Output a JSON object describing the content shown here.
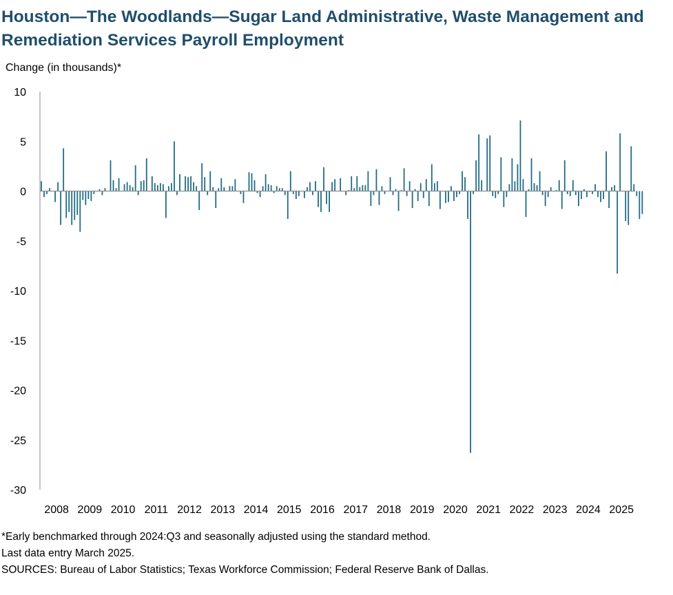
{
  "title": "Houston—The Woodlands—Sugar Land Administrative, Waste Management and Remediation Services Payroll Employment",
  "chart_data": {
    "type": "bar",
    "title": "Houston—The Woodlands—Sugar Land Administrative, Waste Management and Remediation Services Payroll Employment",
    "ylabel": "Change (in thousands)*",
    "xlabel": "",
    "ylim": [
      -30,
      10
    ],
    "yticks": [
      10,
      5,
      0,
      -5,
      -10,
      -15,
      -20,
      -25,
      -30
    ],
    "x_tick_labels": [
      "2008",
      "2009",
      "2010",
      "2011",
      "2012",
      "2013",
      "2014",
      "2015",
      "2016",
      "2017",
      "2018",
      "2019",
      "2020",
      "2021",
      "2022",
      "2023",
      "2024",
      "2025"
    ],
    "start": "2008-01",
    "end": "2025-03",
    "frequency": "monthly",
    "bar_color": "#1f6b85",
    "values": [
      1.0,
      -0.6,
      -0.3,
      0.3,
      0.0,
      -1.1,
      0.9,
      -3.4,
      4.3,
      -2.7,
      -2.1,
      -3.4,
      -2.9,
      -2.4,
      -4.1,
      -0.9,
      -1.4,
      -0.8,
      -1.0,
      -0.3,
      0.0,
      0.2,
      -0.4,
      0.3,
      0.0,
      3.1,
      1.1,
      0.3,
      1.3,
      0.0,
      0.7,
      0.9,
      0.6,
      0.4,
      2.6,
      -0.4,
      1.0,
      1.1,
      3.3,
      0.0,
      1.5,
      0.8,
      0.6,
      0.8,
      0.7,
      -2.7,
      0.5,
      0.8,
      5.0,
      -0.4,
      1.7,
      0.0,
      1.5,
      1.4,
      1.5,
      0.9,
      0.5,
      -1.9,
      2.8,
      1.4,
      -0.4,
      2.0,
      0.4,
      -1.7,
      0.3,
      1.3,
      0.4,
      0.0,
      0.5,
      0.5,
      1.2,
      0.0,
      -0.3,
      -1.2,
      0.0,
      1.9,
      1.8,
      1.1,
      -0.2,
      -0.6,
      0.5,
      1.7,
      0.7,
      0.6,
      -0.2,
      0.5,
      0.3,
      0.3,
      -0.4,
      -2.8,
      2.0,
      -0.3,
      -0.8,
      -0.5,
      0.0,
      -0.7,
      0.4,
      0.9,
      -0.4,
      1.0,
      -1.6,
      -2.1,
      2.4,
      -1.3,
      -2.1,
      0.9,
      1.2,
      0.0,
      1.3,
      0.0,
      -0.4,
      0.1,
      1.5,
      0.3,
      1.5,
      0.4,
      0.6,
      0.6,
      2.0,
      -1.5,
      -0.4,
      2.2,
      -1.4,
      0.5,
      -0.3,
      0.0,
      1.4,
      -0.4,
      0.2,
      -2.0,
      0.1,
      2.3,
      -0.5,
      1.0,
      -1.7,
      0.2,
      -1.0,
      0.8,
      -0.7,
      1.2,
      -1.5,
      2.7,
      0.8,
      1.0,
      -1.8,
      0.0,
      -1.2,
      -1.1,
      0.5,
      -1.0,
      -0.6,
      -0.3,
      2.0,
      1.4,
      -2.8,
      -26.3,
      -0.3,
      3.1,
      5.7,
      1.1,
      0.0,
      5.3,
      5.6,
      -0.5,
      -0.7,
      -0.3,
      3.4,
      -1.6,
      -0.6,
      0.7,
      3.3,
      1.0,
      2.7,
      7.1,
      1.2,
      -2.6,
      0.2,
      3.3,
      0.8,
      0.6,
      2.0,
      -0.4,
      -1.5,
      -0.6,
      0.4,
      0.0,
      0.1,
      1.1,
      -1.8,
      3.1,
      -0.3,
      -0.5,
      1.1,
      -0.4,
      -1.5,
      -0.8,
      0.2,
      -0.6,
      -0.1,
      -0.3,
      0.7,
      -0.6,
      -1.1,
      -0.8,
      4.0,
      -1.7,
      0.4,
      0.6,
      -8.3,
      5.8,
      0.0,
      -3.0,
      -3.4,
      4.5,
      0.7,
      -0.5,
      -2.8,
      -2.3,
      0.0
    ]
  },
  "footnotes": {
    "note1": "*Early benchmarked through 2024:Q3 and seasonally adjusted using the standard method.",
    "note2": "Last data entry March 2025.",
    "note3": "SOURCES: Bureau of Labor Statistics; Texas Workforce Commission; Federal Reserve Bank of Dallas."
  }
}
